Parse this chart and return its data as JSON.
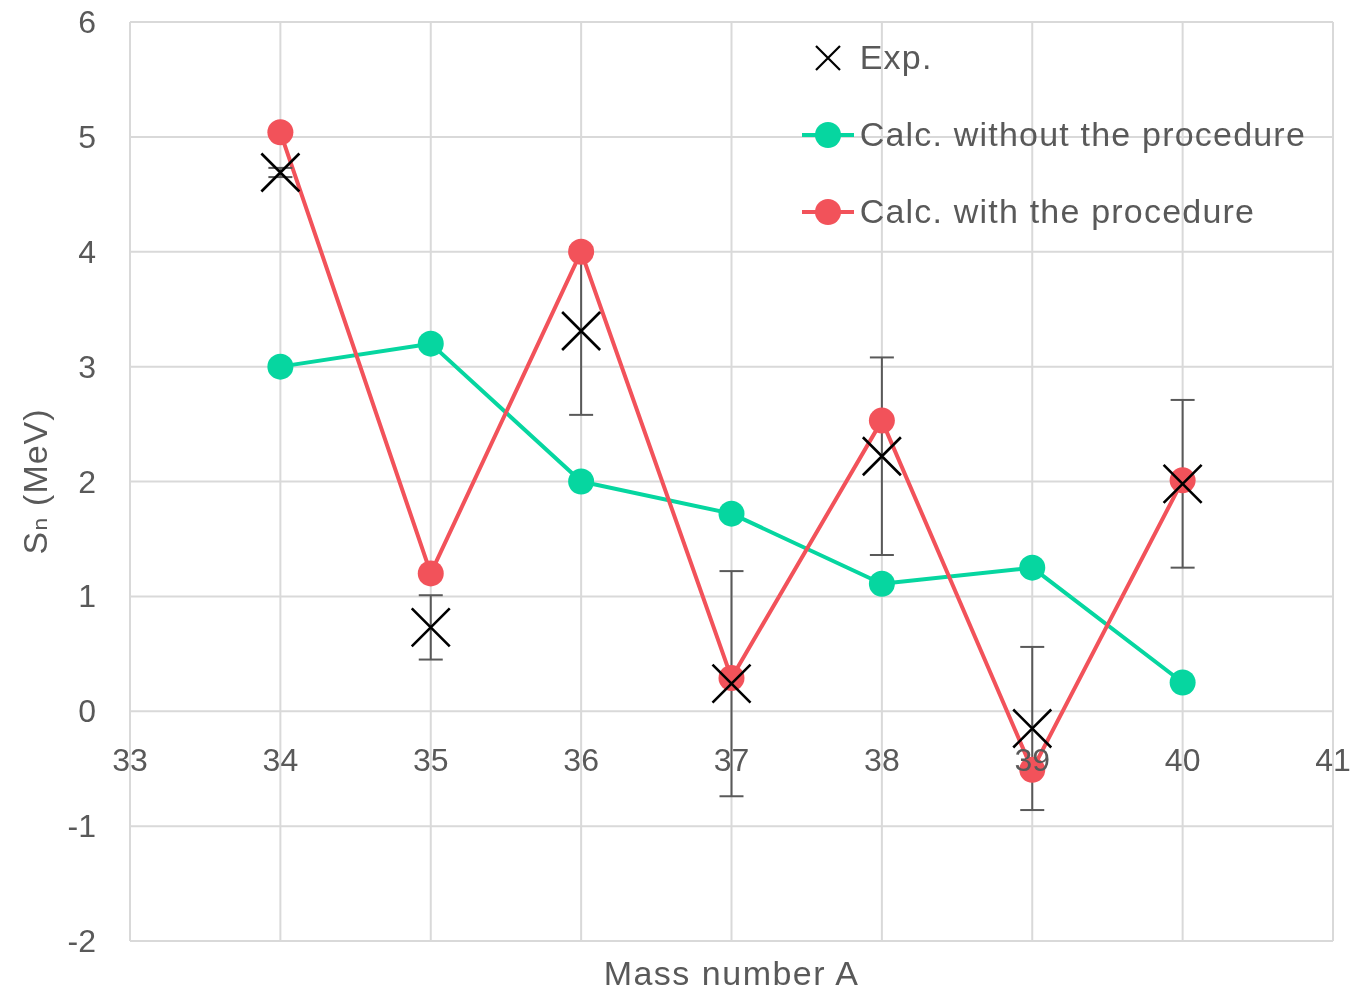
{
  "chart_data": {
    "type": "line",
    "xlabel": "Mass number A",
    "ylabel": "Sₙ (MeV)",
    "x": [
      34,
      35,
      36,
      37,
      38,
      39,
      40
    ],
    "series": [
      {
        "name": "Exp.",
        "type": "scatter",
        "color": "#000000",
        "marker": "cross",
        "values": [
          4.69,
          0.73,
          3.31,
          0.24,
          2.22,
          -0.15,
          1.98
        ],
        "errors": [
          0.04,
          0.28,
          0.73,
          0.98,
          0.86,
          0.71,
          0.73
        ]
      },
      {
        "name": "Calc. without the procedure",
        "color": "#06d6a0",
        "marker": "circle",
        "values": [
          3.0,
          3.2,
          2.0,
          1.72,
          1.11,
          1.25,
          0.25
        ]
      },
      {
        "name": "Calc. with the procedure",
        "color": "#f2525a",
        "marker": "circle",
        "values": [
          5.04,
          1.2,
          4.0,
          0.29,
          2.53,
          -0.51,
          2.01
        ]
      }
    ],
    "xlim": [
      33,
      41
    ],
    "xticks": [
      33,
      34,
      35,
      36,
      37,
      38,
      39,
      40,
      41
    ],
    "ylim": [
      -2,
      6
    ],
    "yticks": [
      -2,
      -1,
      0,
      1,
      2,
      3,
      4,
      5,
      6
    ],
    "grid": true,
    "legend": "top right"
  }
}
